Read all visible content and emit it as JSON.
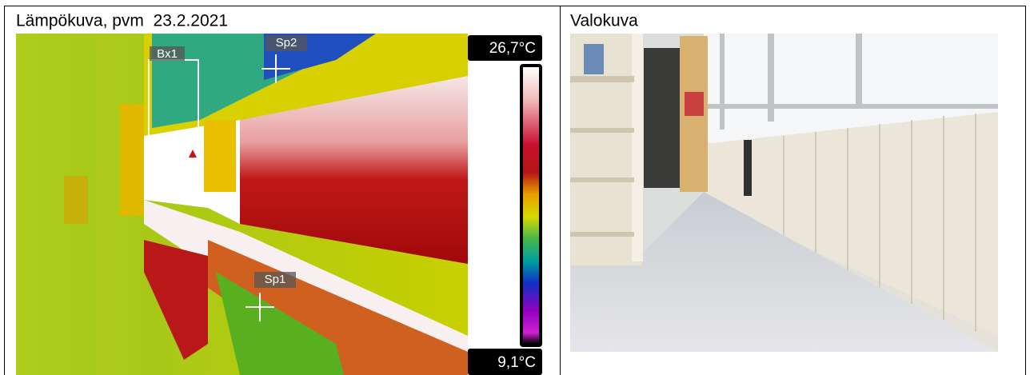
{
  "cells": [
    {
      "title": "Lämpökuva, pvm  23.2.2021",
      "scale_max": "26,7°C",
      "scale_min": "9,1°C",
      "markers": [
        "Bx1",
        "Sp2",
        "Sp1"
      ]
    },
    {
      "title": "Valokuva"
    }
  ]
}
